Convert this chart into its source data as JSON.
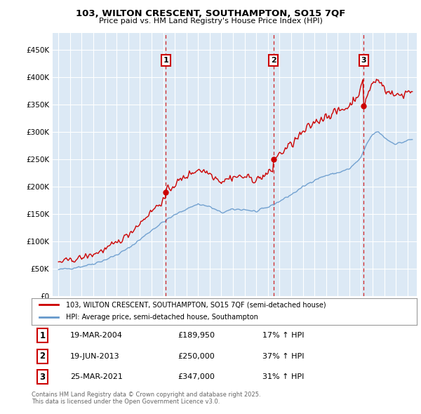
{
  "title_line1": "103, WILTON CRESCENT, SOUTHAMPTON, SO15 7QF",
  "title_line2": "Price paid vs. HM Land Registry's House Price Index (HPI)",
  "background_color": "#ffffff",
  "plot_bg_color": "#dce9f5",
  "grid_color": "#ffffff",
  "house_color": "#cc0000",
  "hpi_color": "#6699cc",
  "purchase_dates_num": [
    2004.22,
    2013.47,
    2021.23
  ],
  "purchase_prices": [
    189950,
    250000,
    347000
  ],
  "purchase_dates_str": [
    "19-MAR-2004",
    "19-JUN-2013",
    "25-MAR-2021"
  ],
  "purchase_prices_str": [
    "£189,950",
    "£250,000",
    "£347,000"
  ],
  "purchase_hpi_str": [
    "17% ↑ HPI",
    "37% ↑ HPI",
    "31% ↑ HPI"
  ],
  "legend_house": "103, WILTON CRESCENT, SOUTHAMPTON, SO15 7QF (semi-detached house)",
  "legend_hpi": "HPI: Average price, semi-detached house, Southampton",
  "footnote": "Contains HM Land Registry data © Crown copyright and database right 2025.\nThis data is licensed under the Open Government Licence v3.0.",
  "ylim_max": 480000,
  "yticks": [
    0,
    50000,
    100000,
    150000,
    200000,
    250000,
    300000,
    350000,
    400000,
    450000
  ],
  "xmin": 1994.5,
  "xmax": 2025.8
}
